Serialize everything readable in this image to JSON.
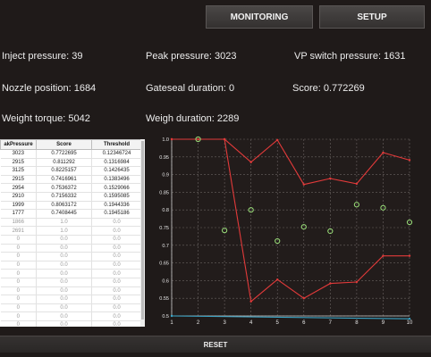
{
  "toolbar": {
    "monitoring_label": "MONITORING",
    "setup_label": "SETUP"
  },
  "stats": {
    "inject_pressure": "Inject pressure: 39",
    "peak_pressure": "Peak pressure: 3023",
    "vp_switch_pressure": "VP switch pressure: 1631",
    "nozzle_position": "Nozzle position: 1684",
    "gateseal_duration": "Gateseal duration: 0",
    "score": "Score: 0.772269",
    "weight_torque": "Weight torque: 5042",
    "weigh_duration": "Weigh duration: 2289"
  },
  "table": {
    "headers": [
      "akPressure",
      "Score",
      "Threshold"
    ],
    "rows": [
      [
        "3023",
        "0.7722695",
        "0.12346724"
      ],
      [
        "2915",
        "0.811292",
        "0.1316984"
      ],
      [
        "3125",
        "0.8225157",
        "0.1426435"
      ],
      [
        "2915",
        "0.7416961",
        "0.1383496"
      ],
      [
        "2954",
        "0.7536372",
        "0.1529066"
      ],
      [
        "2910",
        "0.7156332",
        "0.1595085"
      ],
      [
        "1999",
        "0.8063172",
        "0.1944336"
      ],
      [
        "1777",
        "0.7408445",
        "0.1945186"
      ],
      [
        "1866",
        "1.0",
        "0.0"
      ],
      [
        "2691",
        "1.0",
        "0.0"
      ],
      [
        "0",
        "0.0",
        "0.0"
      ],
      [
        "0",
        "0.0",
        "0.0"
      ],
      [
        "0",
        "0.0",
        "0.0"
      ],
      [
        "0",
        "0.0",
        "0.0"
      ],
      [
        "0",
        "0.0",
        "0.0"
      ],
      [
        "0",
        "0.0",
        "0.0"
      ],
      [
        "0",
        "0.0",
        "0.0"
      ],
      [
        "0",
        "0.0",
        "0.0"
      ],
      [
        "0",
        "0.0",
        "0.0"
      ],
      [
        "0",
        "0.0",
        "0.0"
      ],
      [
        "0",
        "0.0",
        "0.0"
      ],
      [
        "0",
        "0.0",
        "0.0"
      ],
      [
        "0",
        "0.0",
        "0.0"
      ]
    ]
  },
  "chart_data": {
    "type": "line",
    "xlim": [
      1,
      10
    ],
    "ylim": [
      0.5,
      1.0
    ],
    "x_ticks": [
      "1",
      "2",
      "3",
      "4",
      "5",
      "6",
      "7",
      "8",
      "9",
      "10"
    ],
    "y_ticks": [
      "0.5",
      "0.55",
      "0.6",
      "0.65",
      "0.7",
      "0.75",
      "0.8",
      "0.85",
      "0.9",
      "0.95",
      "1.0"
    ],
    "grid": true,
    "series": [
      {
        "style": "line",
        "color": "#e23a3a",
        "points": [
          [
            1,
            1.0
          ],
          [
            2,
            1.0
          ],
          [
            3,
            1.0
          ],
          [
            4,
            0.935
          ],
          [
            5,
            0.998
          ],
          [
            6,
            0.872
          ],
          [
            7,
            0.889
          ],
          [
            8,
            0.874
          ],
          [
            9,
            0.962
          ],
          [
            10,
            0.941
          ]
        ]
      },
      {
        "style": "line",
        "color": "#e23a3a",
        "points": [
          [
            1,
            1.0
          ],
          [
            2,
            1.0
          ],
          [
            3,
            1.0
          ],
          [
            4,
            0.541
          ],
          [
            5,
            0.603
          ],
          [
            6,
            0.55
          ],
          [
            7,
            0.592
          ],
          [
            8,
            0.596
          ],
          [
            9,
            0.67
          ],
          [
            10,
            0.67
          ]
        ]
      },
      {
        "style": "scatter",
        "color": "#9be07a",
        "points": [
          [
            2,
            1.0
          ],
          [
            3,
            0.742
          ],
          [
            4,
            0.8
          ],
          [
            5,
            0.712
          ],
          [
            6,
            0.752
          ],
          [
            7,
            0.74
          ],
          [
            8,
            0.815
          ],
          [
            9,
            0.806
          ],
          [
            10,
            0.765
          ]
        ]
      },
      {
        "style": "line",
        "color": "#3aa6c8",
        "points": [
          [
            1,
            0.5
          ],
          [
            10,
            0.492
          ]
        ]
      }
    ]
  },
  "reset": {
    "label": "RESET"
  }
}
